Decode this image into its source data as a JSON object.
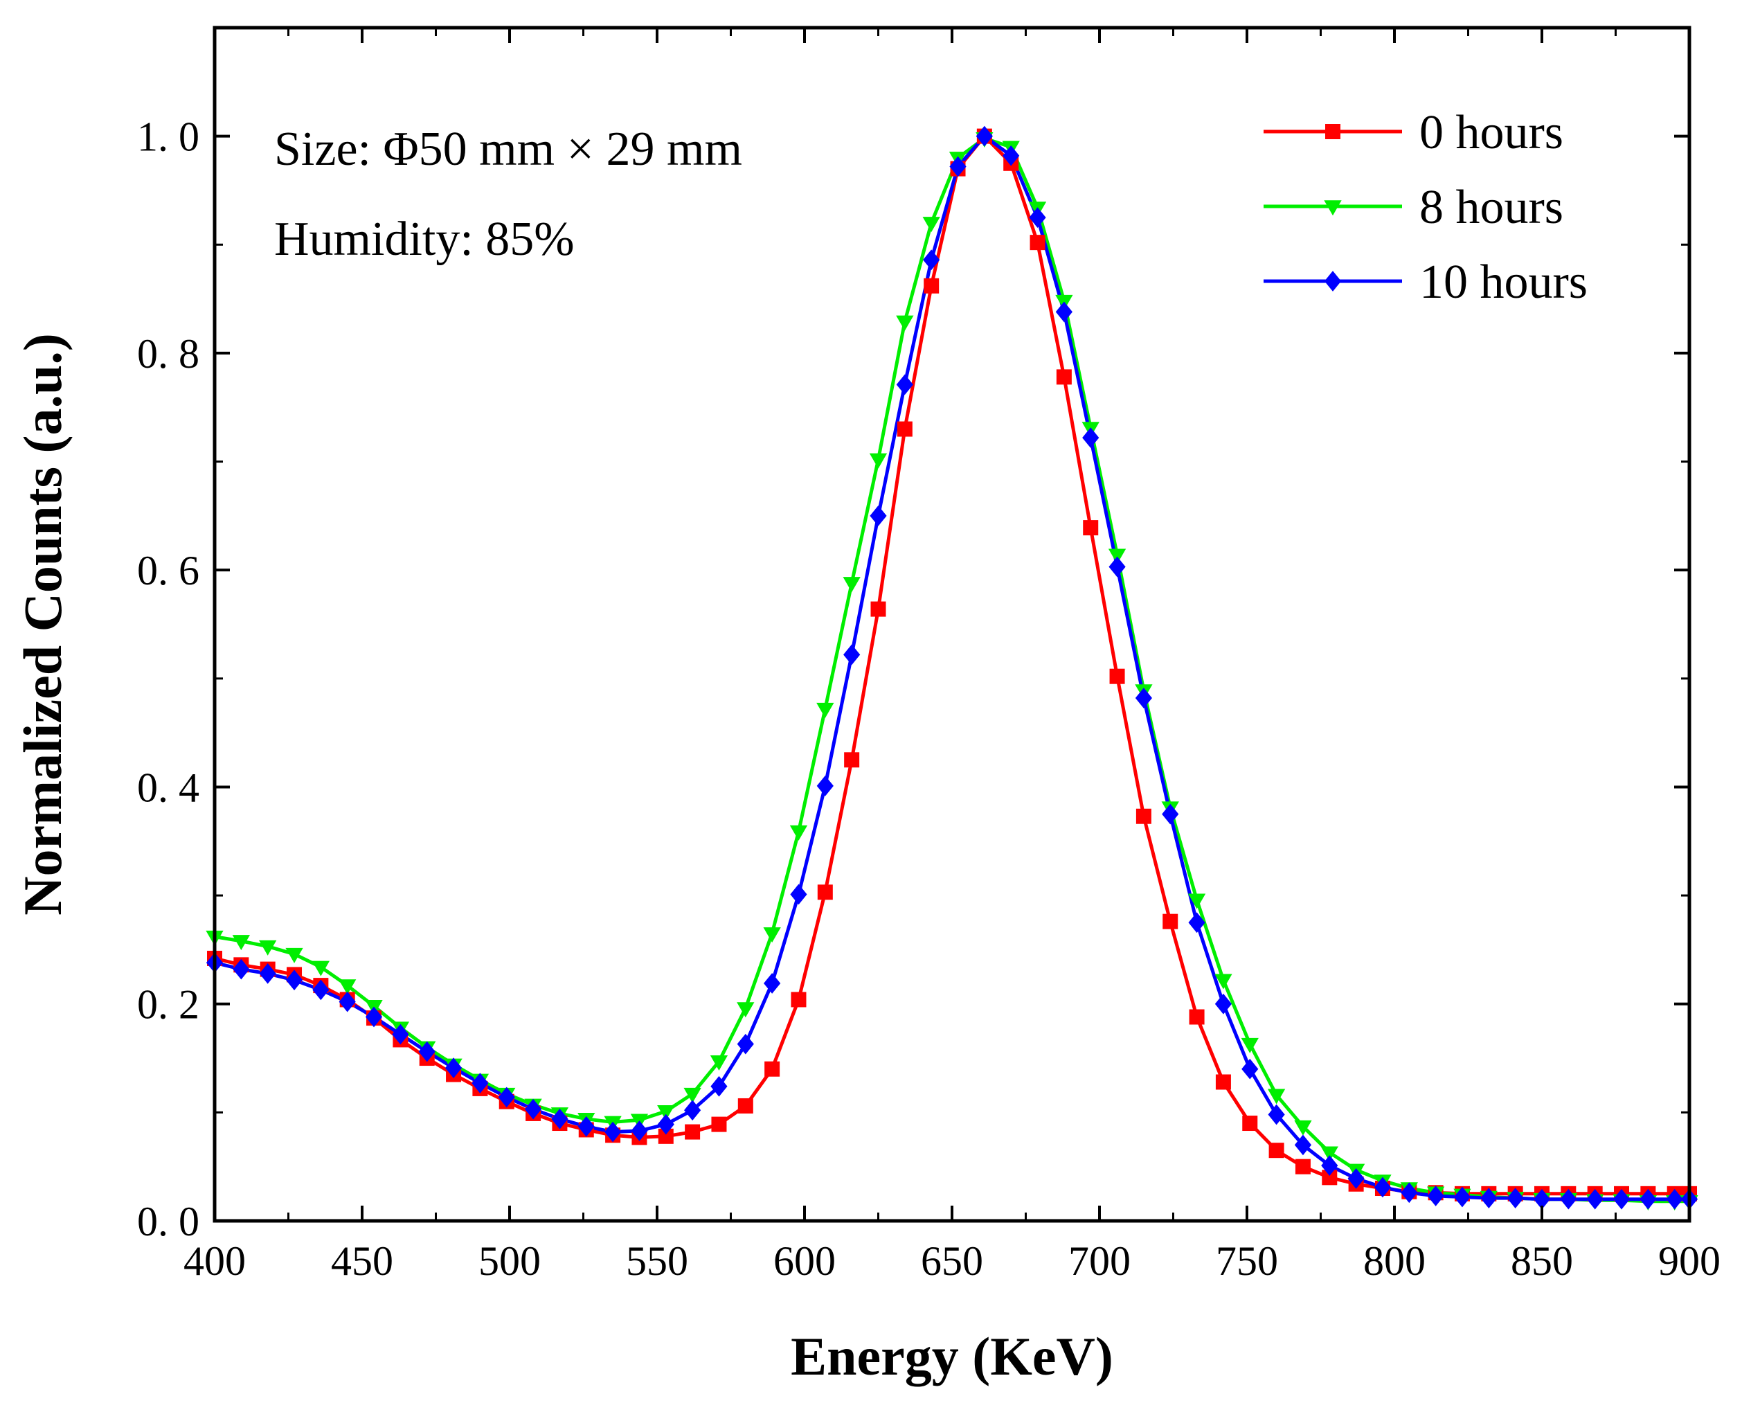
{
  "chart_data": {
    "type": "line",
    "xlabel": "Energy (KeV)",
    "ylabel": "Normalized Counts (a.u.)",
    "xlim": [
      400,
      900
    ],
    "ylim": [
      0,
      1.1
    ],
    "xticks": [
      400,
      450,
      500,
      550,
      600,
      650,
      700,
      750,
      800,
      850,
      900
    ],
    "yticks": [
      0.0,
      0.2,
      0.4,
      0.6,
      0.8,
      1.0
    ],
    "ytick_labels": [
      "0. 0",
      "0. 2",
      "0. 4",
      "0. 6",
      "0. 8",
      "1. 0"
    ],
    "annotations": [
      "Size: Φ50 mm × 29 mm",
      "Humidity: 85%"
    ],
    "legend_position": "top-right",
    "grid": false,
    "series": [
      {
        "name": "0 hours",
        "color": "#ff0000",
        "marker": "square",
        "x": [
          400,
          409,
          418,
          427,
          436,
          445,
          454,
          463,
          472,
          481,
          490,
          499,
          508,
          517,
          526,
          535,
          544,
          553,
          562,
          571,
          580,
          589,
          598,
          607,
          616,
          625,
          634,
          643,
          652,
          661,
          670,
          679,
          688,
          697,
          706,
          715,
          724,
          733,
          742,
          751,
          760,
          769,
          778,
          787,
          796,
          805,
          814,
          823,
          832,
          841,
          850,
          859,
          868,
          877,
          886,
          895,
          900
        ],
        "values": [
          0.242,
          0.236,
          0.232,
          0.227,
          0.217,
          0.204,
          0.187,
          0.167,
          0.15,
          0.135,
          0.122,
          0.11,
          0.099,
          0.09,
          0.084,
          0.079,
          0.077,
          0.078,
          0.082,
          0.089,
          0.106,
          0.14,
          0.204,
          0.303,
          0.425,
          0.564,
          0.73,
          0.862,
          0.97,
          1.0,
          0.975,
          0.902,
          0.778,
          0.639,
          0.502,
          0.373,
          0.276,
          0.188,
          0.128,
          0.09,
          0.065,
          0.05,
          0.04,
          0.034,
          0.03,
          0.027,
          0.026,
          0.025,
          0.025,
          0.025,
          0.025,
          0.025,
          0.025,
          0.025,
          0.025,
          0.025,
          0.025
        ]
      },
      {
        "name": "8 hours",
        "color": "#00ee00",
        "marker": "triangle-down",
        "x": [
          400,
          409,
          418,
          427,
          436,
          445,
          454,
          463,
          472,
          481,
          490,
          499,
          508,
          517,
          526,
          535,
          544,
          553,
          562,
          571,
          580,
          589,
          598,
          607,
          616,
          625,
          634,
          643,
          652,
          661,
          670,
          679,
          688,
          697,
          706,
          715,
          724,
          733,
          742,
          751,
          760,
          769,
          778,
          787,
          796,
          805,
          814,
          823,
          832,
          841,
          850,
          859,
          868,
          877,
          886,
          895,
          900
        ],
        "values": [
          0.262,
          0.258,
          0.253,
          0.246,
          0.234,
          0.217,
          0.198,
          0.178,
          0.16,
          0.144,
          0.13,
          0.117,
          0.107,
          0.099,
          0.094,
          0.091,
          0.093,
          0.101,
          0.117,
          0.147,
          0.196,
          0.265,
          0.359,
          0.472,
          0.588,
          0.702,
          0.829,
          0.92,
          0.98,
          0.998,
          0.99,
          0.934,
          0.848,
          0.731,
          0.614,
          0.489,
          0.381,
          0.296,
          0.222,
          0.163,
          0.116,
          0.087,
          0.063,
          0.047,
          0.037,
          0.03,
          0.026,
          0.024,
          0.022,
          0.021,
          0.02,
          0.02,
          0.019,
          0.019,
          0.018,
          0.018,
          0.018
        ]
      },
      {
        "name": "10 hours",
        "color": "#0000ff",
        "marker": "diamond",
        "x": [
          400,
          409,
          418,
          427,
          436,
          445,
          454,
          463,
          472,
          481,
          490,
          499,
          508,
          517,
          526,
          535,
          544,
          553,
          562,
          571,
          580,
          589,
          598,
          607,
          616,
          625,
          634,
          643,
          652,
          661,
          670,
          679,
          688,
          697,
          706,
          715,
          724,
          733,
          742,
          751,
          760,
          769,
          778,
          787,
          796,
          805,
          814,
          823,
          832,
          841,
          850,
          859,
          868,
          877,
          886,
          895,
          900
        ],
        "values": [
          0.238,
          0.232,
          0.228,
          0.222,
          0.213,
          0.202,
          0.188,
          0.172,
          0.156,
          0.141,
          0.127,
          0.114,
          0.103,
          0.094,
          0.087,
          0.082,
          0.083,
          0.089,
          0.102,
          0.124,
          0.163,
          0.219,
          0.301,
          0.401,
          0.522,
          0.65,
          0.771,
          0.886,
          0.972,
          1.0,
          0.982,
          0.925,
          0.838,
          0.722,
          0.603,
          0.482,
          0.375,
          0.275,
          0.2,
          0.14,
          0.098,
          0.07,
          0.051,
          0.039,
          0.031,
          0.026,
          0.023,
          0.022,
          0.021,
          0.021,
          0.02,
          0.02,
          0.02,
          0.02,
          0.02,
          0.02,
          0.02
        ]
      }
    ]
  }
}
